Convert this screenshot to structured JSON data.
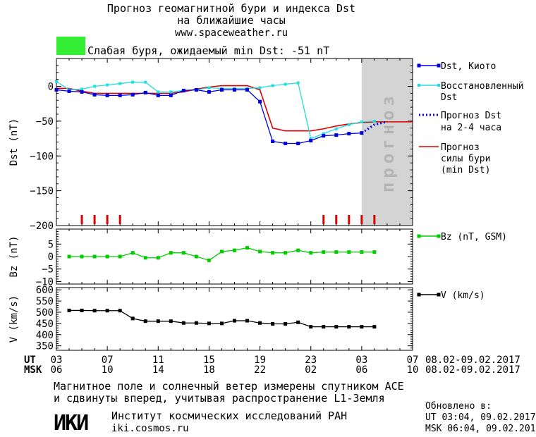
{
  "header": {
    "title_line1": "Прогноз геомагнитной бури и индекса Dst",
    "title_line2": "на ближайшие часы",
    "url": "www.spaceweather.ru",
    "status_color": "#33ee33",
    "status_text": "Слабая буря, ожидаемый min Dst: -51 nT"
  },
  "chart_data": [
    {
      "type": "line",
      "ylabel": "Dst (nT)",
      "ylim": [
        -200,
        40
      ],
      "yticks": [
        0,
        -50,
        -100,
        -150,
        -200
      ],
      "forecast_band_label": "прогноз",
      "legend": [
        {
          "label": "Dst, Киото",
          "color": "#0000dd"
        },
        {
          "label": "Восстановленный Dst",
          "color": "#22dddd"
        },
        {
          "label": "Прогноз Dst на 2-4 часа",
          "color": "#0000dd"
        },
        {
          "label": "Прогноз силы бури (min Dst)",
          "color": "#dd0000"
        }
      ],
      "series": [
        {
          "name": "Dst, Киото",
          "color": "#0000dd",
          "x": [
            3,
            4,
            5,
            6,
            7,
            8,
            9,
            10,
            11,
            12,
            13,
            14,
            15,
            16,
            17,
            18,
            19,
            20,
            21,
            22,
            23,
            24,
            25,
            26,
            27
          ],
          "values": [
            -5,
            -7,
            -8,
            -12,
            -13,
            -13,
            -12,
            -9,
            -13,
            -13,
            -6,
            -5,
            -8,
            -5,
            -5,
            -5,
            -22,
            -79,
            -82,
            -82,
            -78,
            -71,
            -70,
            -68,
            -67
          ]
        },
        {
          "name": "Восстановленный Dst",
          "color": "#22dddd",
          "x": [
            3,
            4,
            5,
            6,
            7,
            8,
            9,
            10,
            11,
            12,
            13,
            14,
            15,
            16,
            17,
            18,
            19,
            20,
            21,
            22,
            23,
            24,
            25,
            26,
            27,
            28
          ],
          "values": [
            7,
            -5,
            -4,
            0,
            2,
            4,
            6,
            6,
            -8,
            -8,
            -6,
            -5,
            -2,
            -3,
            -3,
            -3,
            -2,
            1,
            3,
            5,
            -75,
            -68,
            -61,
            -55,
            -51,
            -50
          ]
        },
        {
          "name": "Прогноз Dst на 2-4 часа",
          "color": "#0000dd",
          "x": [
            27,
            28,
            29
          ],
          "values": [
            -67,
            -55,
            -51
          ]
        },
        {
          "name": "Прогноз силы бури (min Dst)",
          "color": "#dd0000",
          "x": [
            3,
            4,
            5,
            6,
            7,
            8,
            9,
            10,
            11,
            12,
            13,
            14,
            15,
            16,
            17,
            18,
            19,
            20,
            21,
            22,
            23,
            24,
            25,
            26,
            27,
            28,
            29,
            30,
            31
          ],
          "values": [
            -3,
            -3,
            -7,
            -10,
            -10,
            -10,
            -10,
            -10,
            -10,
            -10,
            -8,
            -4,
            -1,
            1,
            1,
            1,
            -5,
            -60,
            -64,
            -64,
            -64,
            -61,
            -57,
            -54,
            -52,
            -51,
            -51,
            -51,
            -51
          ]
        }
      ],
      "storm_markers_x": [
        5,
        6,
        7,
        8,
        24,
        25,
        26,
        27,
        28
      ]
    },
    {
      "type": "line",
      "ylabel": "Bz (nT)",
      "ylim": [
        -11,
        11
      ],
      "yticks": [
        5,
        0,
        -5,
        -10
      ],
      "legend": [
        {
          "label": "Bz (nT, GSM)",
          "color": "#00cc00"
        }
      ],
      "series": [
        {
          "name": "Bz (nT, GSM)",
          "color": "#00cc00",
          "x": [
            4,
            5,
            6,
            7,
            8,
            9,
            10,
            11,
            12,
            13,
            14,
            15,
            16,
            17,
            18,
            19,
            20,
            21,
            22,
            23,
            24,
            25,
            26,
            27,
            28
          ],
          "values": [
            0,
            0,
            0,
            0,
            0,
            1.5,
            -0.5,
            -0.5,
            1.5,
            1.5,
            0,
            -1.5,
            2,
            2.5,
            3.5,
            2,
            1.5,
            1.5,
            2.5,
            1.5,
            1.8,
            1.8,
            1.8,
            1.8,
            1.8
          ]
        }
      ]
    },
    {
      "type": "line",
      "ylabel": "V (km/s)",
      "ylim": [
        330,
        610
      ],
      "yticks": [
        600,
        550,
        500,
        450,
        400,
        350
      ],
      "legend": [
        {
          "label": "V (km/s)",
          "color": "#000000"
        }
      ],
      "series": [
        {
          "name": "V (km/s)",
          "color": "#000000",
          "x": [
            4,
            5,
            6,
            7,
            8,
            9,
            10,
            11,
            12,
            13,
            14,
            15,
            16,
            17,
            18,
            19,
            20,
            21,
            22,
            23,
            24,
            25,
            26,
            27,
            28
          ],
          "values": [
            508,
            508,
            507,
            507,
            507,
            472,
            460,
            460,
            460,
            452,
            452,
            450,
            450,
            462,
            462,
            452,
            448,
            448,
            455,
            435,
            435,
            435,
            435,
            435,
            435
          ]
        }
      ]
    }
  ],
  "x_axis": {
    "ut_label": "UT",
    "msk_label": "MSK",
    "ut_ticks": [
      "03",
      "07",
      "11",
      "15",
      "19",
      "23",
      "03",
      "07"
    ],
    "msk_ticks": [
      "06",
      "10",
      "14",
      "18",
      "22",
      "02",
      "06",
      "10"
    ],
    "date_range_ut": "08.02-09.02.2017",
    "date_range_msk": "08.02-09.02.2017"
  },
  "footer": {
    "note_line1": "Магнитное поле и солнечный ветер измерены спутником ACE",
    "note_line2": "и сдвинуты вперед, учитывая распространение L1-Земля",
    "logo_text": "ИКИ",
    "institute": "Институт космических исследований РАН",
    "site": "iki.cosmos.ru",
    "updated_label": "Обновлено в:",
    "updated_ut": "UT  03:04, 09.02.2017",
    "updated_msk": "MSK 06:04, 09.02.2017"
  }
}
